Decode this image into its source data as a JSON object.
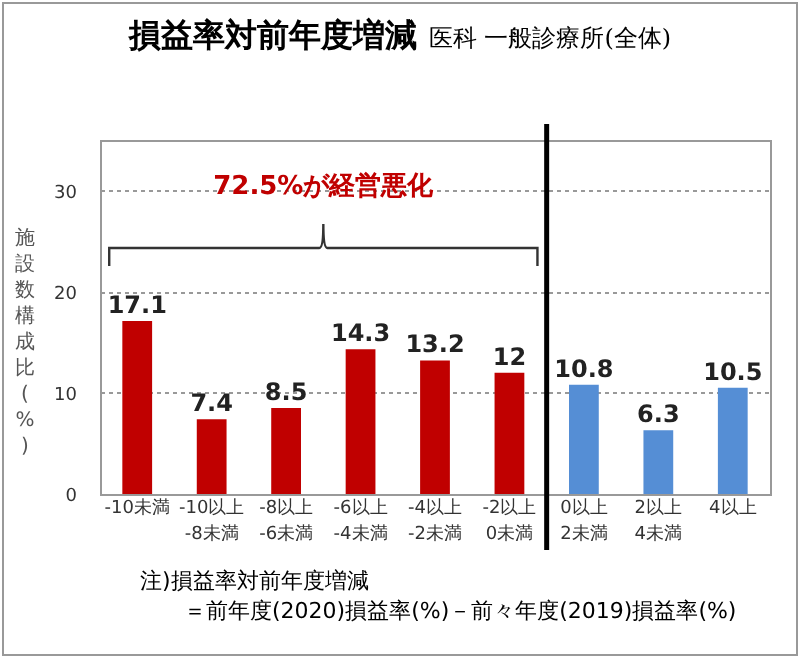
{
  "chart_data": {
    "type": "bar",
    "title": "損益率対前年度増減",
    "subtitle": "医科 一般診療所(全体)",
    "ylabel": "施設数構成比(%)",
    "categories": [
      "-10未満",
      "-10以上\n-8未満",
      "-8以上\n-6未満",
      "-6以上\n-4未満",
      "-4以上\n-2未満",
      "-2以上\n0未満",
      "0以上\n2未満",
      "2以上\n4未満",
      "4以上"
    ],
    "values": [
      17.1,
      7.4,
      8.5,
      14.3,
      13.2,
      12,
      10.8,
      6.3,
      10.5
    ],
    "colors": [
      "#c00000",
      "#c00000",
      "#c00000",
      "#c00000",
      "#c00000",
      "#c00000",
      "#558ed5",
      "#558ed5",
      "#558ed5"
    ],
    "ylim": [
      0,
      35
    ],
    "yticks": [
      0,
      10,
      20,
      30
    ],
    "grid": "y",
    "data_labels": true,
    "ref_lines": [
      {
        "axis": "x",
        "value": "0以上\n2未満",
        "color": "#000000",
        "line_style": "solid"
      }
    ],
    "annotations": [
      "72.5%が経営悪化",
      "注)損益率対前年度増減",
      "＝前年度(2020)損益率(%)－前々年度(2019)損益率(%)"
    ]
  }
}
